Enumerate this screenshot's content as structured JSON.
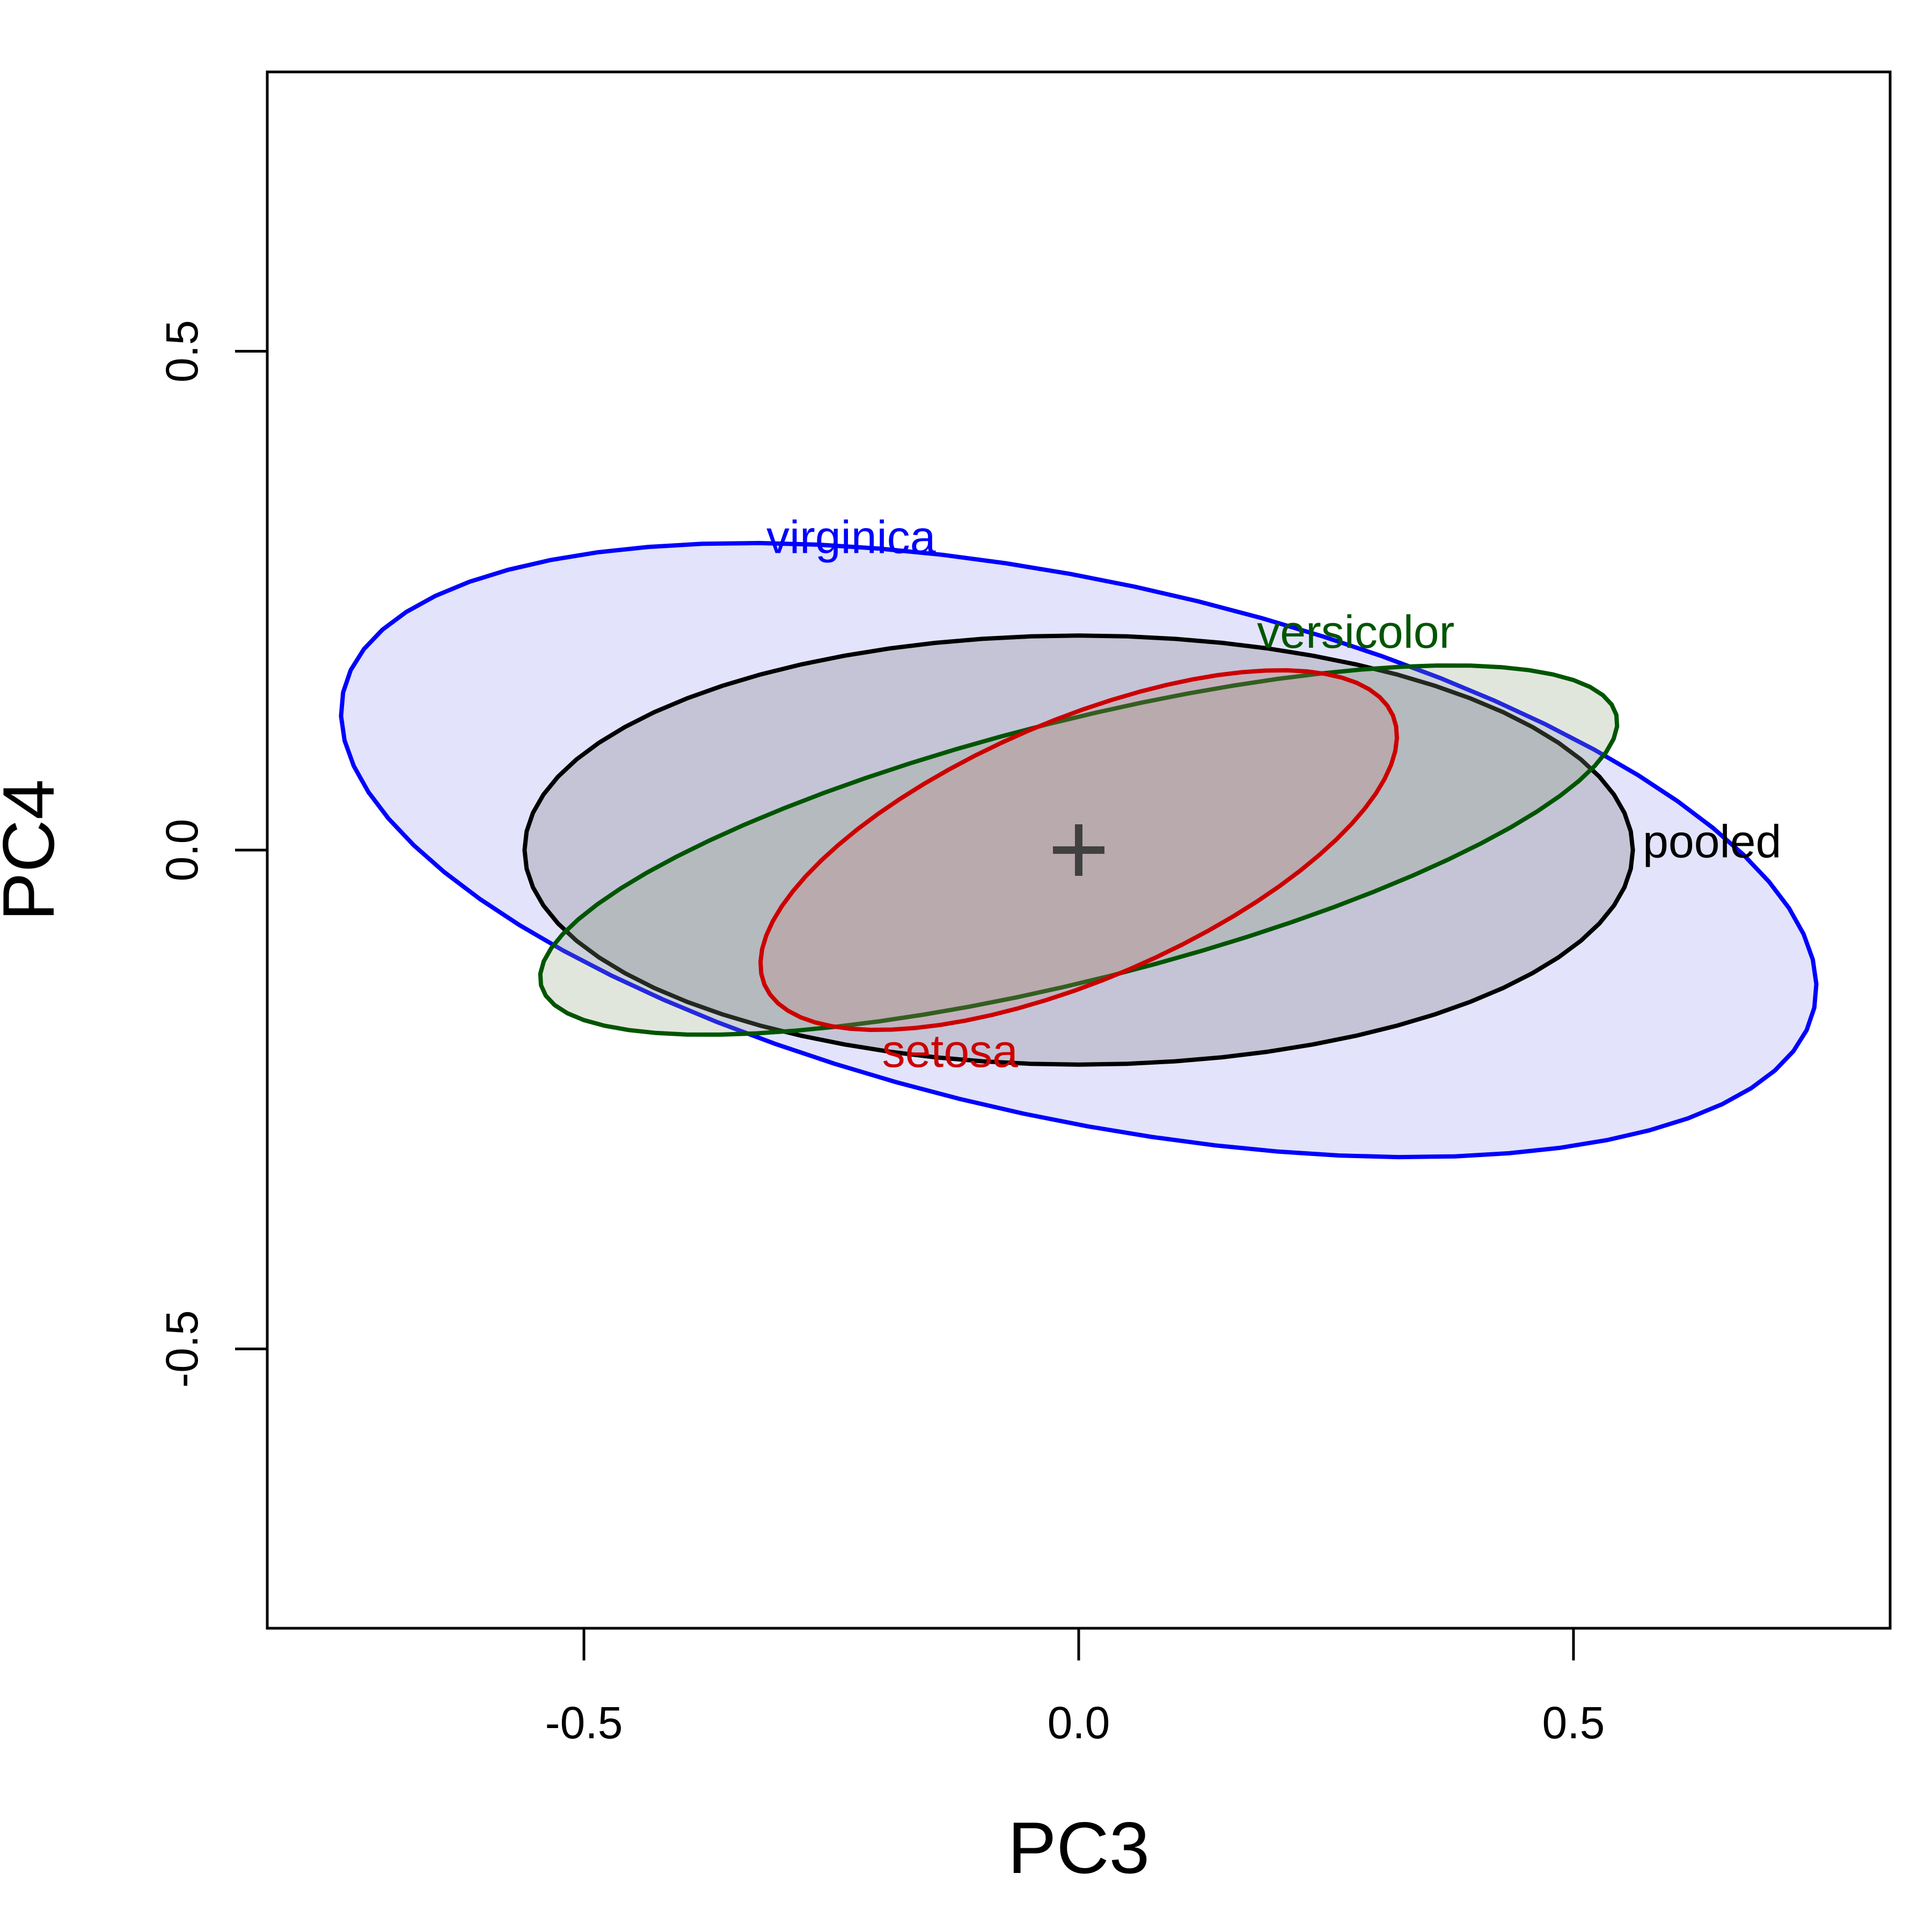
{
  "chart_data": {
    "type": "ellipse",
    "xlabel": "PC3",
    "ylabel": "PC4",
    "xlim": [
      -0.82,
      0.82
    ],
    "ylim": [
      -0.78,
      0.78
    ],
    "xticks": [
      -0.5,
      0.0,
      0.5
    ],
    "xtick_labels": [
      "-0.5",
      "0.0",
      "0.5"
    ],
    "yticks": [
      -0.5,
      0.0,
      0.5
    ],
    "ytick_labels": [
      "-0.5",
      "0.0",
      "0.5"
    ],
    "grid": false,
    "center": {
      "x": 0.0,
      "y": 0.0
    },
    "ellipses": [
      {
        "name": "virginica",
        "color": "#0000ff",
        "fill": "#e3e3fb",
        "center_x": 0.0,
        "center_y": 0.0,
        "rx": 0.76,
        "ry": 0.27,
        "angle_deg": -12,
        "label_x": -0.23,
        "label_y": 0.31
      },
      {
        "name": "pooled",
        "color": "#000000",
        "fill": "#6e6e6e",
        "center_x": 0.0,
        "center_y": 0.0,
        "rx": 0.56,
        "ry": 0.215,
        "angle_deg": 0,
        "label_x": 0.57,
        "label_y": 0.005
      },
      {
        "name": "versicolor",
        "color": "#005500",
        "fill": "#8a9e7a",
        "center_x": 0.0,
        "center_y": 0.0,
        "rx": 0.56,
        "ry": 0.13,
        "angle_deg": 14,
        "label_x": 0.28,
        "label_y": 0.215
      },
      {
        "name": "setosa",
        "color": "#cc0000",
        "fill": "#c47a7a",
        "center_x": 0.0,
        "center_y": 0.0,
        "rx": 0.345,
        "ry": 0.13,
        "angle_deg": 23,
        "label_x": -0.13,
        "label_y": -0.205
      }
    ]
  }
}
